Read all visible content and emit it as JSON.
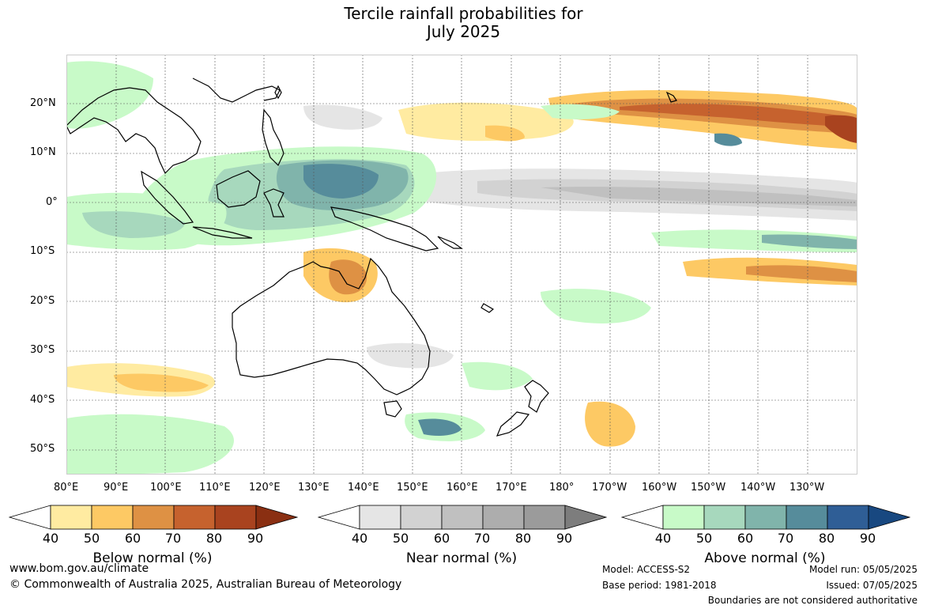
{
  "title": {
    "line1": "Tercile rainfall probabilities for",
    "line2": "July 2025"
  },
  "map": {
    "lat_labels": [
      "20°N",
      "10°N",
      "0°",
      "10°S",
      "20°S",
      "30°S",
      "40°S",
      "50°S"
    ],
    "lon_labels": [
      "80°E",
      "90°E",
      "100°E",
      "110°E",
      "120°E",
      "130°E",
      "140°E",
      "150°E",
      "160°E",
      "170°E",
      "180°",
      "170°W",
      "160°W",
      "150°W",
      "140°W",
      "130°W"
    ],
    "colors": {
      "land_outline": "#000000",
      "border": "#888888",
      "grid": "#555555",
      "ocean": "#ffffff"
    }
  },
  "legends": [
    {
      "id": "below",
      "title": "Below normal (%)",
      "ticks": [
        "40",
        "50",
        "60",
        "70",
        "80",
        "90"
      ],
      "colors": [
        "#ffffff",
        "#ffeba1",
        "#fdc964",
        "#de9144",
        "#c6622e",
        "#a9431f",
        "#8a2f12"
      ]
    },
    {
      "id": "near",
      "title": "Near normal (%)",
      "ticks": [
        "40",
        "50",
        "60",
        "70",
        "80",
        "90"
      ],
      "colors": [
        "#ffffff",
        "#e5e5e5",
        "#d2d2d2",
        "#c0c0c0",
        "#adadad",
        "#9b9b9b",
        "#7d7d7d"
      ]
    },
    {
      "id": "above",
      "title": "Above normal (%)",
      "ticks": [
        "40",
        "50",
        "60",
        "70",
        "80",
        "90"
      ],
      "colors": [
        "#ffffff",
        "#c8fac8",
        "#a7d8bd",
        "#80b4ab",
        "#568c9b",
        "#2f5e96",
        "#184880"
      ]
    }
  ],
  "footer": {
    "website": "www.bom.gov.au/climate",
    "copyright": "© Commonwealth of Australia 2025, Australian Bureau of Meteorology",
    "model": "Model: ACCESS-S2",
    "base_period": "Base period: 1981-2018",
    "model_run": "Model run: 05/05/2025",
    "issued": "Issued: 07/05/2025",
    "disclaimer": "Boundaries are not considered authoritative"
  }
}
